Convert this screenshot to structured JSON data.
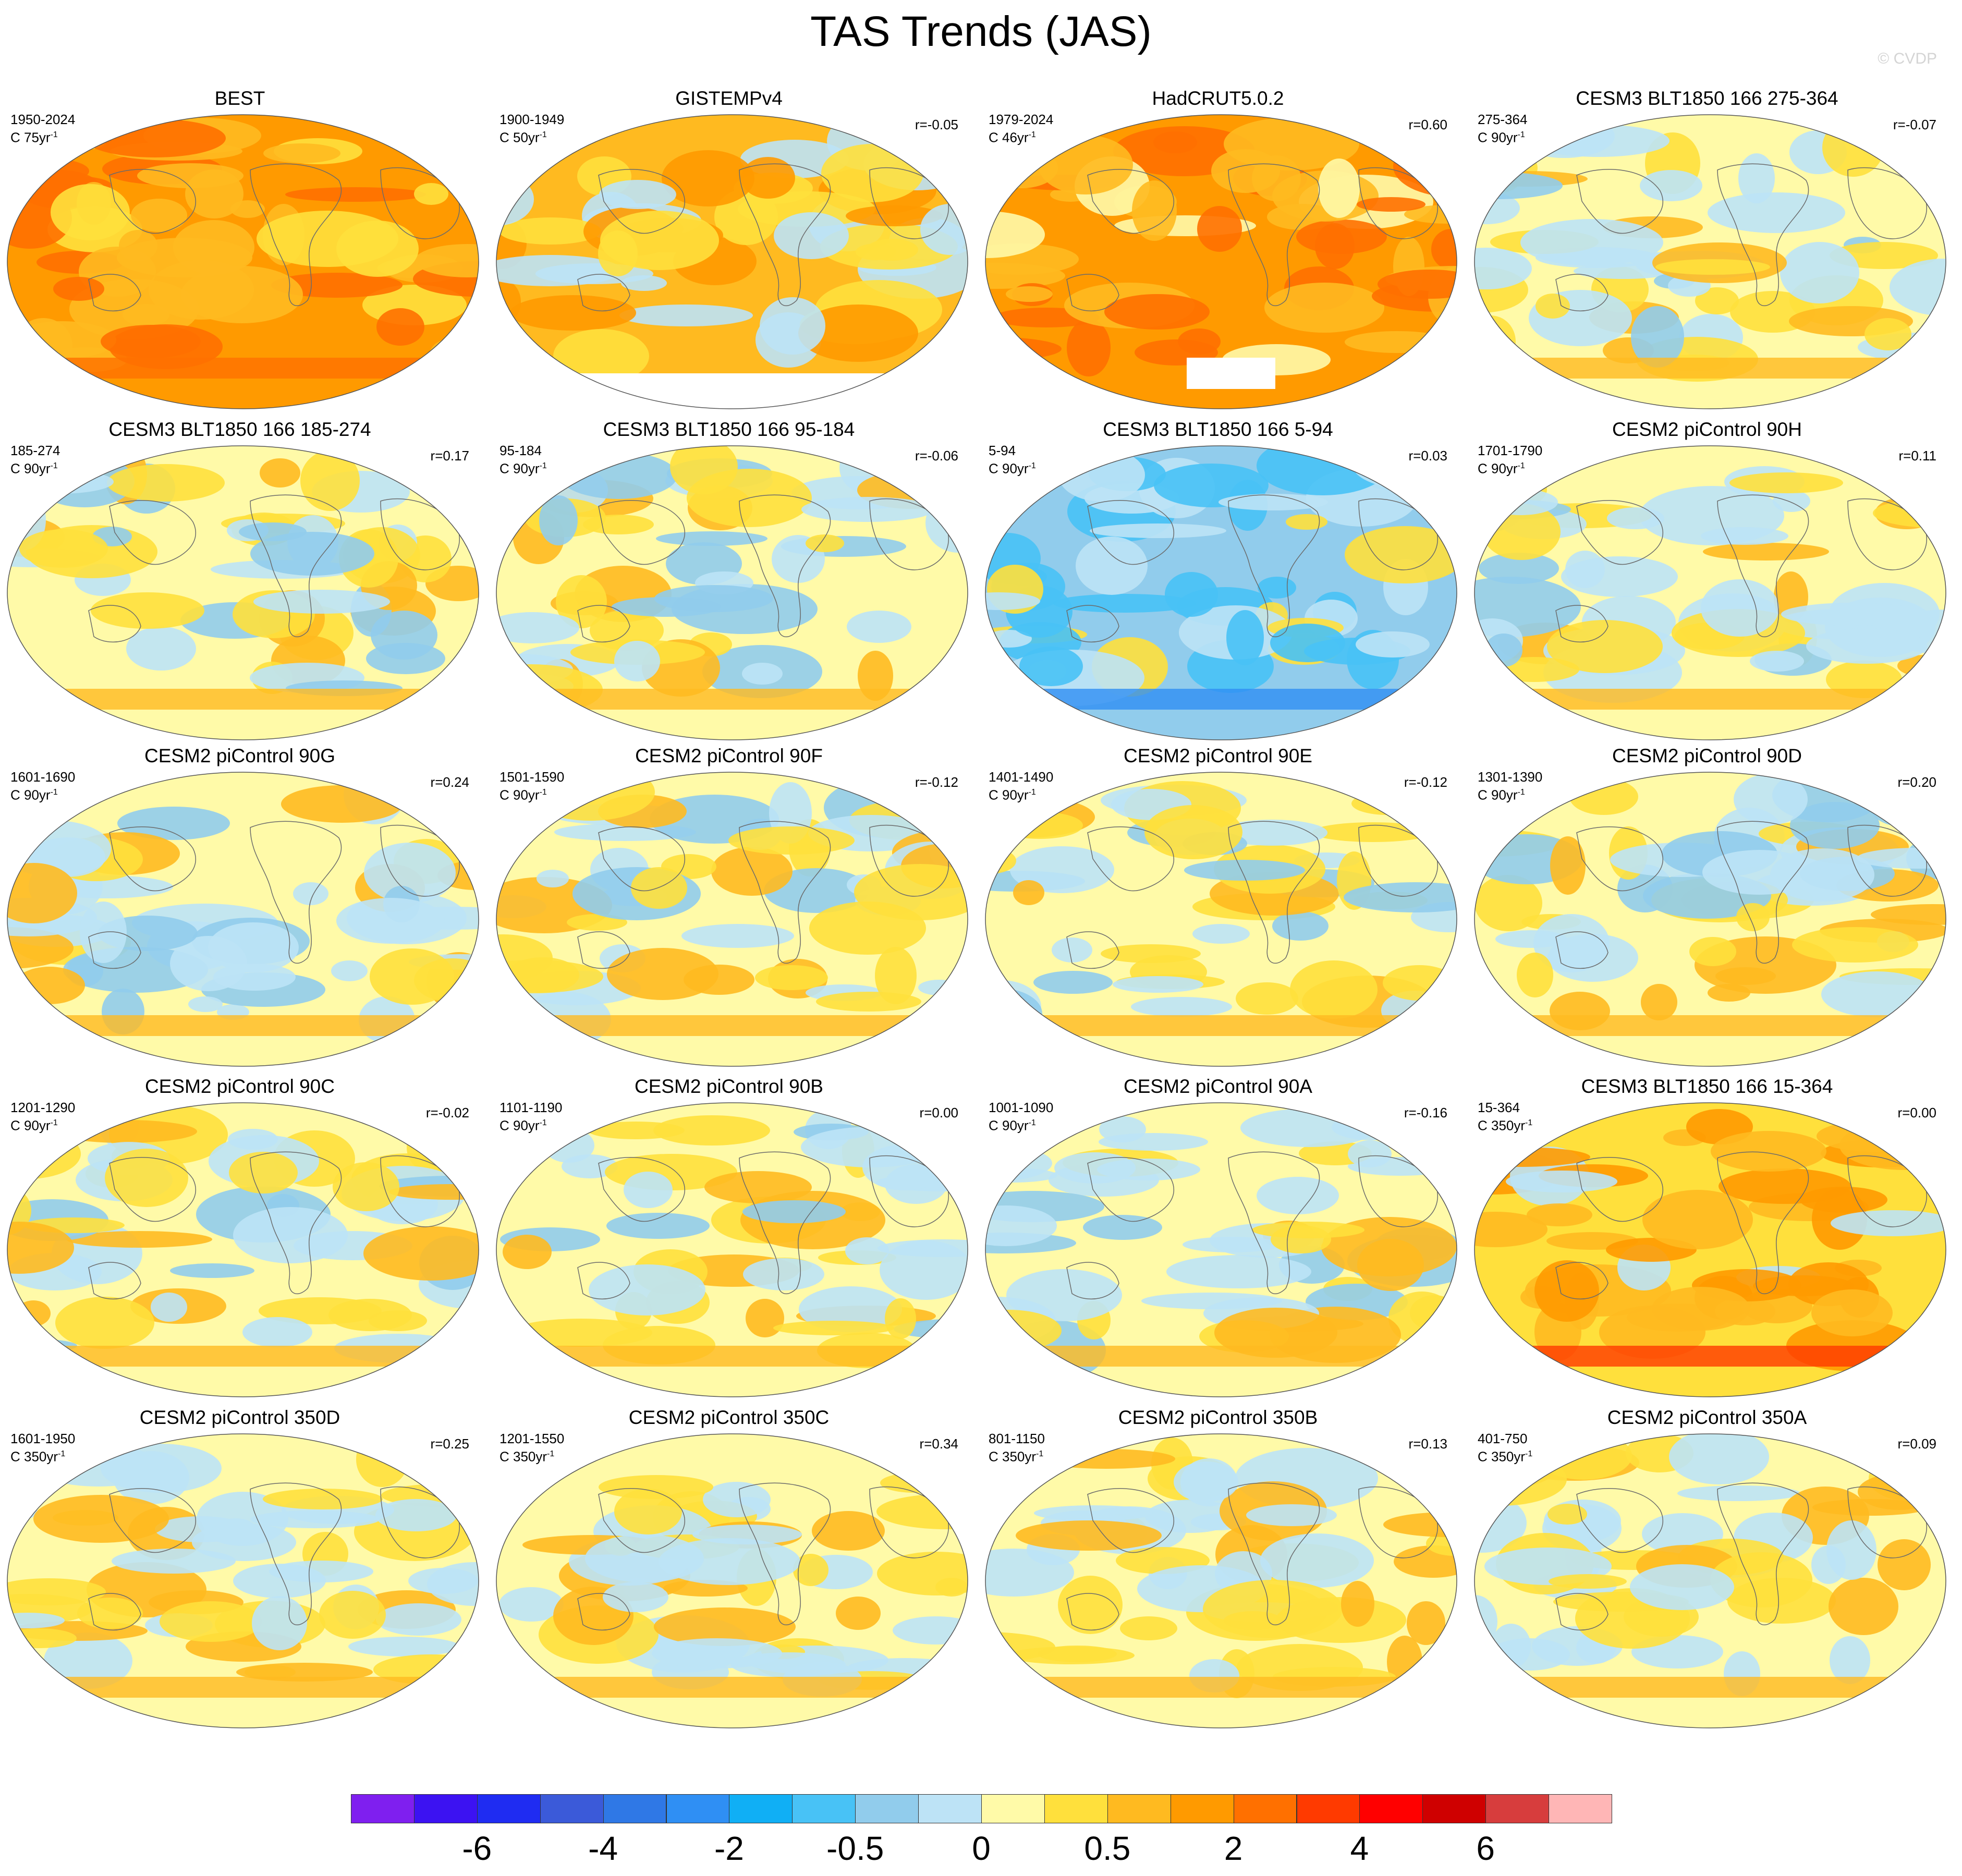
{
  "title": "TAS Trends (JAS)",
  "copyright": "© CVDP",
  "colors": {
    "palette": [
      "#7f1fef",
      "#3c12f2",
      "#1f2cf2",
      "#3b5ad9",
      "#2f78e6",
      "#2f8ff4",
      "#10aff5",
      "#48c2f6",
      "#91ccec",
      "#bde3f6",
      "#fffaa8",
      "#ffe03c",
      "#ffba20",
      "#ff9a00",
      "#ff7000",
      "#ff3a00",
      "#ff0000",
      "#cf0000",
      "#d73d3d",
      "#ffb6b6"
    ],
    "land_outline": "#6b6b6b",
    "missing": "#ffffff"
  },
  "colorbar": {
    "tick_labels": [
      "-6",
      "-4",
      "-2",
      "-0.5",
      "0",
      "0.5",
      "2",
      "4",
      "6"
    ]
  },
  "panels": [
    {
      "title": "BEST",
      "period": "1950-2024",
      "trend_length": "C 75yr",
      "corr": "",
      "pattern": "warm_strong"
    },
    {
      "title": "GISTEMPv4",
      "period": "1900-1949",
      "trend_length": "C 50yr",
      "corr": "r=-0.05",
      "pattern": "warm_mixed"
    },
    {
      "title": "HadCRUT5.0.2",
      "period": "1979-2024",
      "trend_length": "C 46yr",
      "corr": "r=0.60",
      "pattern": "warm_strong2"
    },
    {
      "title": "CESM3 BLT1850 166 275-364",
      "period": "275-364",
      "trend_length": "C 90yr",
      "corr": "r=-0.07",
      "pattern": "mixed_a"
    },
    {
      "title": "CESM3 BLT1850 166 185-274",
      "period": "185-274",
      "trend_length": "C 90yr",
      "corr": "r=0.17",
      "pattern": "mixed_b"
    },
    {
      "title": "CESM3 BLT1850 166 95-184",
      "period": "95-184",
      "trend_length": "C 90yr",
      "corr": "r=-0.06",
      "pattern": "mixed_c"
    },
    {
      "title": "CESM3 BLT1850 166 5-94",
      "period": "5-94",
      "trend_length": "C 90yr",
      "corr": "r=0.03",
      "pattern": "cool"
    },
    {
      "title": "CESM2 piControl 90H",
      "period": "1701-1790",
      "trend_length": "C 90yr",
      "corr": "r=0.11",
      "pattern": "mixed_d"
    },
    {
      "title": "CESM2 piControl 90G",
      "period": "1601-1690",
      "trend_length": "C 90yr",
      "corr": "r=0.24",
      "pattern": "mixed_e"
    },
    {
      "title": "CESM2 piControl 90F",
      "period": "1501-1590",
      "trend_length": "C 90yr",
      "corr": "r=-0.12",
      "pattern": "mixed_f"
    },
    {
      "title": "CESM2 piControl 90E",
      "period": "1401-1490",
      "trend_length": "C 90yr",
      "corr": "r=-0.12",
      "pattern": "mixed_g"
    },
    {
      "title": "CESM2 piControl 90D",
      "period": "1301-1390",
      "trend_length": "C 90yr",
      "corr": "r=0.20",
      "pattern": "mixed_h"
    },
    {
      "title": "CESM2 piControl 90C",
      "period": "1201-1290",
      "trend_length": "C 90yr",
      "corr": "r=-0.02",
      "pattern": "mixed_i"
    },
    {
      "title": "CESM2 piControl 90B",
      "period": "1101-1190",
      "trend_length": "C 90yr",
      "corr": "r=0.00",
      "pattern": "mixed_j"
    },
    {
      "title": "CESM2 piControl 90A",
      "period": "1001-1090",
      "trend_length": "C 90yr",
      "corr": "r=-0.16",
      "pattern": "mixed_k"
    },
    {
      "title": "CESM3 BLT1850 166 15-364",
      "period": "15-364",
      "trend_length": "C 350yr",
      "corr": "r=0.00",
      "pattern": "warm_south"
    },
    {
      "title": "CESM2 piControl 350D",
      "period": "1601-1950",
      "trend_length": "C 350yr",
      "corr": "r=0.25",
      "pattern": "mild_a"
    },
    {
      "title": "CESM2 piControl 350C",
      "period": "1201-1550",
      "trend_length": "C 350yr",
      "corr": "r=0.34",
      "pattern": "mild_b"
    },
    {
      "title": "CESM2 piControl 350B",
      "period": "801-1150",
      "trend_length": "C 350yr",
      "corr": "r=0.13",
      "pattern": "mild_c"
    },
    {
      "title": "CESM2 piControl 350A",
      "period": "401-750",
      "trend_length": "C 350yr",
      "corr": "r=0.09",
      "pattern": "mild_d"
    }
  ]
}
